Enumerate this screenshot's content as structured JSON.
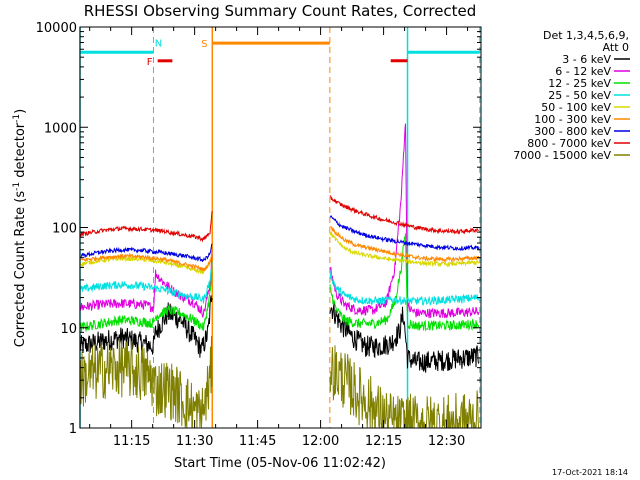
{
  "chart_data": {
    "type": "line",
    "title": "RHESSI Observing Summary Count Rates, Corrected",
    "xlabel": "Start Time (05-Nov-06 11:02:42)",
    "ylabel_main": "Corrected Count Rate (s",
    "ylabel_sup1": "-1",
    "ylabel_mid": " detector",
    "ylabel_sup2": "-1",
    "ylabel_end": ")",
    "y_scale": "log",
    "ylim": [
      1,
      10000
    ],
    "xlim_minutes": [
      0,
      95.5
    ],
    "x_ticks": [
      {
        "t": 12.3,
        "label": "11:15"
      },
      {
        "t": 27.3,
        "label": "11:30"
      },
      {
        "t": 42.3,
        "label": "11:45"
      },
      {
        "t": 57.3,
        "label": "12:00"
      },
      {
        "t": 72.3,
        "label": "12:15"
      },
      {
        "t": 87.3,
        "label": "12:30"
      }
    ],
    "y_ticks": [
      {
        "v": 1,
        "label": "1"
      },
      {
        "v": 10,
        "label": "10"
      },
      {
        "v": 100,
        "label": "100"
      },
      {
        "v": 1000,
        "label": "1000"
      },
      {
        "v": 10000,
        "label": "10000"
      }
    ],
    "legend_header": [
      "Det 1,3,4,5,6,9,",
      "Att 0"
    ],
    "legend_placement": "right",
    "footer": "17-Oct-2021 18:14",
    "gaps_minutes": [
      [
        31.5,
        59.5
      ]
    ],
    "series": [
      {
        "name": "3 - 6 keV",
        "color": "#000000",
        "noise": 0.11,
        "points": [
          [
            0,
            6.5
          ],
          [
            5,
            7.3
          ],
          [
            10,
            8
          ],
          [
            14,
            7.2
          ],
          [
            17.5,
            6.5
          ],
          [
            18,
            9
          ],
          [
            21,
            14
          ],
          [
            24,
            12
          ],
          [
            27,
            8
          ],
          [
            29,
            6
          ],
          [
            30.5,
            9
          ],
          [
            31.5,
            25
          ],
          [
            59.5,
            17
          ],
          [
            62,
            11
          ],
          [
            65,
            8
          ],
          [
            68,
            6.5
          ],
          [
            71,
            6.5
          ],
          [
            74,
            7
          ],
          [
            76,
            9
          ],
          [
            77,
            14
          ],
          [
            78,
            5
          ],
          [
            80,
            4.5
          ],
          [
            88,
            4.8
          ],
          [
            95,
            5.2
          ]
        ]
      },
      {
        "name": "6 - 12 keV",
        "color": "#e000e0",
        "noise": 0.05,
        "points": [
          [
            0,
            16
          ],
          [
            5,
            17
          ],
          [
            10,
            17.5
          ],
          [
            15,
            17
          ],
          [
            17.5,
            16
          ],
          [
            18,
            35
          ],
          [
            20,
            28
          ],
          [
            23,
            22
          ],
          [
            27,
            18
          ],
          [
            29.5,
            14
          ],
          [
            31,
            28
          ],
          [
            31.5,
            60
          ],
          [
            59.5,
            40
          ],
          [
            61,
            22
          ],
          [
            63,
            17
          ],
          [
            66,
            15
          ],
          [
            70,
            15
          ],
          [
            73,
            18
          ],
          [
            75,
            40
          ],
          [
            76.5,
            200
          ],
          [
            77.5,
            1200
          ],
          [
            78,
            16
          ],
          [
            80,
            14
          ],
          [
            88,
            14
          ],
          [
            95,
            14.5
          ]
        ]
      },
      {
        "name": "12 - 25 keV",
        "color": "#00e000",
        "noise": 0.05,
        "points": [
          [
            0,
            10
          ],
          [
            5,
            11
          ],
          [
            10,
            12
          ],
          [
            15,
            11.5
          ],
          [
            17.5,
            11
          ],
          [
            18,
            13
          ],
          [
            21,
            15
          ],
          [
            24,
            14
          ],
          [
            27,
            12
          ],
          [
            29.5,
            10
          ],
          [
            31,
            22
          ],
          [
            31.5,
            40
          ],
          [
            59.5,
            25
          ],
          [
            61,
            15
          ],
          [
            63,
            12
          ],
          [
            66,
            11
          ],
          [
            70,
            11
          ],
          [
            73,
            12
          ],
          [
            75,
            18
          ],
          [
            76.5,
            40
          ],
          [
            77.5,
            90
          ],
          [
            78,
            11
          ],
          [
            80,
            10.5
          ],
          [
            88,
            10.5
          ],
          [
            95,
            11
          ]
        ]
      },
      {
        "name": "25 - 50 keV",
        "color": "#00e0e0",
        "noise": 0.04,
        "points": [
          [
            0,
            24
          ],
          [
            5,
            26
          ],
          [
            10,
            27
          ],
          [
            15,
            26
          ],
          [
            20,
            24
          ],
          [
            25,
            21
          ],
          [
            28,
            20
          ],
          [
            29.5,
            19
          ],
          [
            31,
            30
          ],
          [
            31.5,
            45
          ],
          [
            59.5,
            35
          ],
          [
            61,
            25
          ],
          [
            63,
            21
          ],
          [
            66,
            19
          ],
          [
            70,
            18.5
          ],
          [
            75,
            19
          ],
          [
            78,
            18.5
          ],
          [
            82,
            18.5
          ],
          [
            88,
            19
          ],
          [
            95,
            20
          ]
        ]
      },
      {
        "name": "50 - 100 keV",
        "color": "#d8d800",
        "noise": 0.02,
        "points": [
          [
            0,
            43
          ],
          [
            5,
            47
          ],
          [
            10,
            49
          ],
          [
            15,
            48
          ],
          [
            20,
            45
          ],
          [
            25,
            40
          ],
          [
            28,
            37
          ],
          [
            29.5,
            36
          ],
          [
            31,
            45
          ],
          [
            31.5,
            60
          ],
          [
            59.5,
            90
          ],
          [
            61,
            75
          ],
          [
            63,
            62
          ],
          [
            66,
            55
          ],
          [
            70,
            51
          ],
          [
            74,
            48
          ],
          [
            78,
            46
          ],
          [
            82,
            44
          ],
          [
            88,
            43
          ],
          [
            95,
            45
          ]
        ]
      },
      {
        "name": "100 - 300 keV",
        "color": "#ff8800",
        "noise": 0.02,
        "points": [
          [
            0,
            47
          ],
          [
            5,
            50
          ],
          [
            10,
            52
          ],
          [
            15,
            51
          ],
          [
            20,
            48
          ],
          [
            25,
            43
          ],
          [
            28,
            40
          ],
          [
            29.5,
            38
          ],
          [
            31,
            45
          ],
          [
            31.5,
            60
          ],
          [
            59.5,
            105
          ],
          [
            61,
            88
          ],
          [
            63,
            75
          ],
          [
            66,
            66
          ],
          [
            70,
            61
          ],
          [
            74,
            56
          ],
          [
            78,
            52
          ],
          [
            82,
            49
          ],
          [
            88,
            48
          ],
          [
            95,
            50
          ]
        ]
      },
      {
        "name": "300 - 800 keV",
        "color": "#0000e0",
        "noise": 0.02,
        "points": [
          [
            0,
            52
          ],
          [
            5,
            57
          ],
          [
            10,
            60
          ],
          [
            15,
            59
          ],
          [
            20,
            56
          ],
          [
            25,
            52
          ],
          [
            28,
            49
          ],
          [
            29.5,
            47
          ],
          [
            31,
            55
          ],
          [
            31.5,
            70
          ],
          [
            59.5,
            130
          ],
          [
            62,
            105
          ],
          [
            65,
            92
          ],
          [
            68,
            84
          ],
          [
            72,
            77
          ],
          [
            76,
            72
          ],
          [
            80,
            68
          ],
          [
            85,
            64
          ],
          [
            90,
            62
          ],
          [
            95,
            63
          ]
        ]
      },
      {
        "name": "800 - 7000 keV",
        "color": "#e00000",
        "noise": 0.02,
        "points": [
          [
            0,
            85
          ],
          [
            5,
            93
          ],
          [
            10,
            98
          ],
          [
            15,
            96
          ],
          [
            20,
            92
          ],
          [
            25,
            84
          ],
          [
            28,
            80
          ],
          [
            29.5,
            76
          ],
          [
            31,
            90
          ],
          [
            31.5,
            150
          ],
          [
            59.5,
            200
          ],
          [
            62,
            170
          ],
          [
            65,
            150
          ],
          [
            68,
            135
          ],
          [
            72,
            120
          ],
          [
            76,
            110
          ],
          [
            80,
            100
          ],
          [
            85,
            93
          ],
          [
            90,
            91
          ],
          [
            95,
            95
          ]
        ]
      },
      {
        "name": "7000 - 15000 keV",
        "color": "#808000",
        "noise": 0.3,
        "points": [
          [
            0,
            3
          ],
          [
            5,
            3.8
          ],
          [
            10,
            4
          ],
          [
            15,
            3.5
          ],
          [
            17,
            3.2
          ],
          [
            18,
            2.5
          ],
          [
            21,
            2.5
          ],
          [
            24,
            2.0
          ],
          [
            27,
            1.5
          ],
          [
            29,
            1.3
          ],
          [
            31,
            3
          ],
          [
            31.5,
            5
          ],
          [
            59.5,
            4
          ],
          [
            62,
            3.3
          ],
          [
            64,
            2.7
          ],
          [
            66,
            2.2
          ],
          [
            68,
            1.9
          ],
          [
            70,
            1.6
          ],
          [
            72,
            1.3
          ],
          [
            75,
            1.1
          ],
          [
            80,
            1.1
          ],
          [
            88,
            1.1
          ],
          [
            95,
            1.2
          ]
        ]
      }
    ],
    "state_bars": [
      {
        "label": "",
        "color": "#00e0e0",
        "t0": 0,
        "t1": 17.5,
        "value": 5600
      },
      {
        "label": "N",
        "color": "#00e0e0",
        "t0": 17.8,
        "t1": 17.8,
        "value": 7000
      },
      {
        "label": "F",
        "color": "#e00000",
        "t0": 18.5,
        "t1": 22,
        "value": 4600
      },
      {
        "label": "S",
        "color": "#ff8800",
        "t0": 31.5,
        "t1": 59.5,
        "value": 6900
      },
      {
        "label": "",
        "color": "#e00000",
        "t0": 74,
        "t1": 78,
        "value": 4600
      },
      {
        "label": "",
        "color": "#00e0e0",
        "t0": 78,
        "t1": 95.2,
        "value": 5600
      }
    ],
    "vertical_lines": [
      {
        "t": 0,
        "color": "#00e0e0",
        "style": "solid"
      },
      {
        "t": 17.5,
        "color": "#00e0e0",
        "style": "dashed"
      },
      {
        "t": 31.5,
        "color": "#ff8800",
        "style": "solid"
      },
      {
        "t": 59.5,
        "color": "#ff8800",
        "style": "dashed"
      },
      {
        "t": 78,
        "color": "#00e0e0",
        "style": "solid"
      },
      {
        "t": 95.2,
        "color": "#00e0e0",
        "style": "dashed"
      }
    ]
  }
}
